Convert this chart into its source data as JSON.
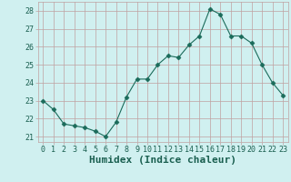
{
  "x": [
    0,
    1,
    2,
    3,
    4,
    5,
    6,
    7,
    8,
    9,
    10,
    11,
    12,
    13,
    14,
    15,
    16,
    17,
    18,
    19,
    20,
    21,
    22,
    23
  ],
  "y": [
    23.0,
    22.5,
    21.7,
    21.6,
    21.5,
    21.3,
    21.0,
    21.8,
    23.2,
    24.2,
    24.2,
    25.0,
    25.5,
    25.4,
    26.1,
    26.6,
    28.1,
    27.8,
    26.6,
    26.6,
    26.2,
    25.0,
    24.0,
    23.3
  ],
  "line_color": "#1a6b5a",
  "marker": "D",
  "marker_size": 2.5,
  "bg_color": "#d0f0f0",
  "grid_color": "#c0a0a0",
  "xlabel": "Humidex (Indice chaleur)",
  "ylim_min": 20.7,
  "ylim_max": 28.5,
  "xlim_min": -0.5,
  "xlim_max": 23.5,
  "yticks": [
    21,
    22,
    23,
    24,
    25,
    26,
    27,
    28
  ],
  "xticks": [
    0,
    1,
    2,
    3,
    4,
    5,
    6,
    7,
    8,
    9,
    10,
    11,
    12,
    13,
    14,
    15,
    16,
    17,
    18,
    19,
    20,
    21,
    22,
    23
  ],
  "tick_fontsize": 6,
  "xlabel_fontsize": 8,
  "label_color": "#1a5f50"
}
